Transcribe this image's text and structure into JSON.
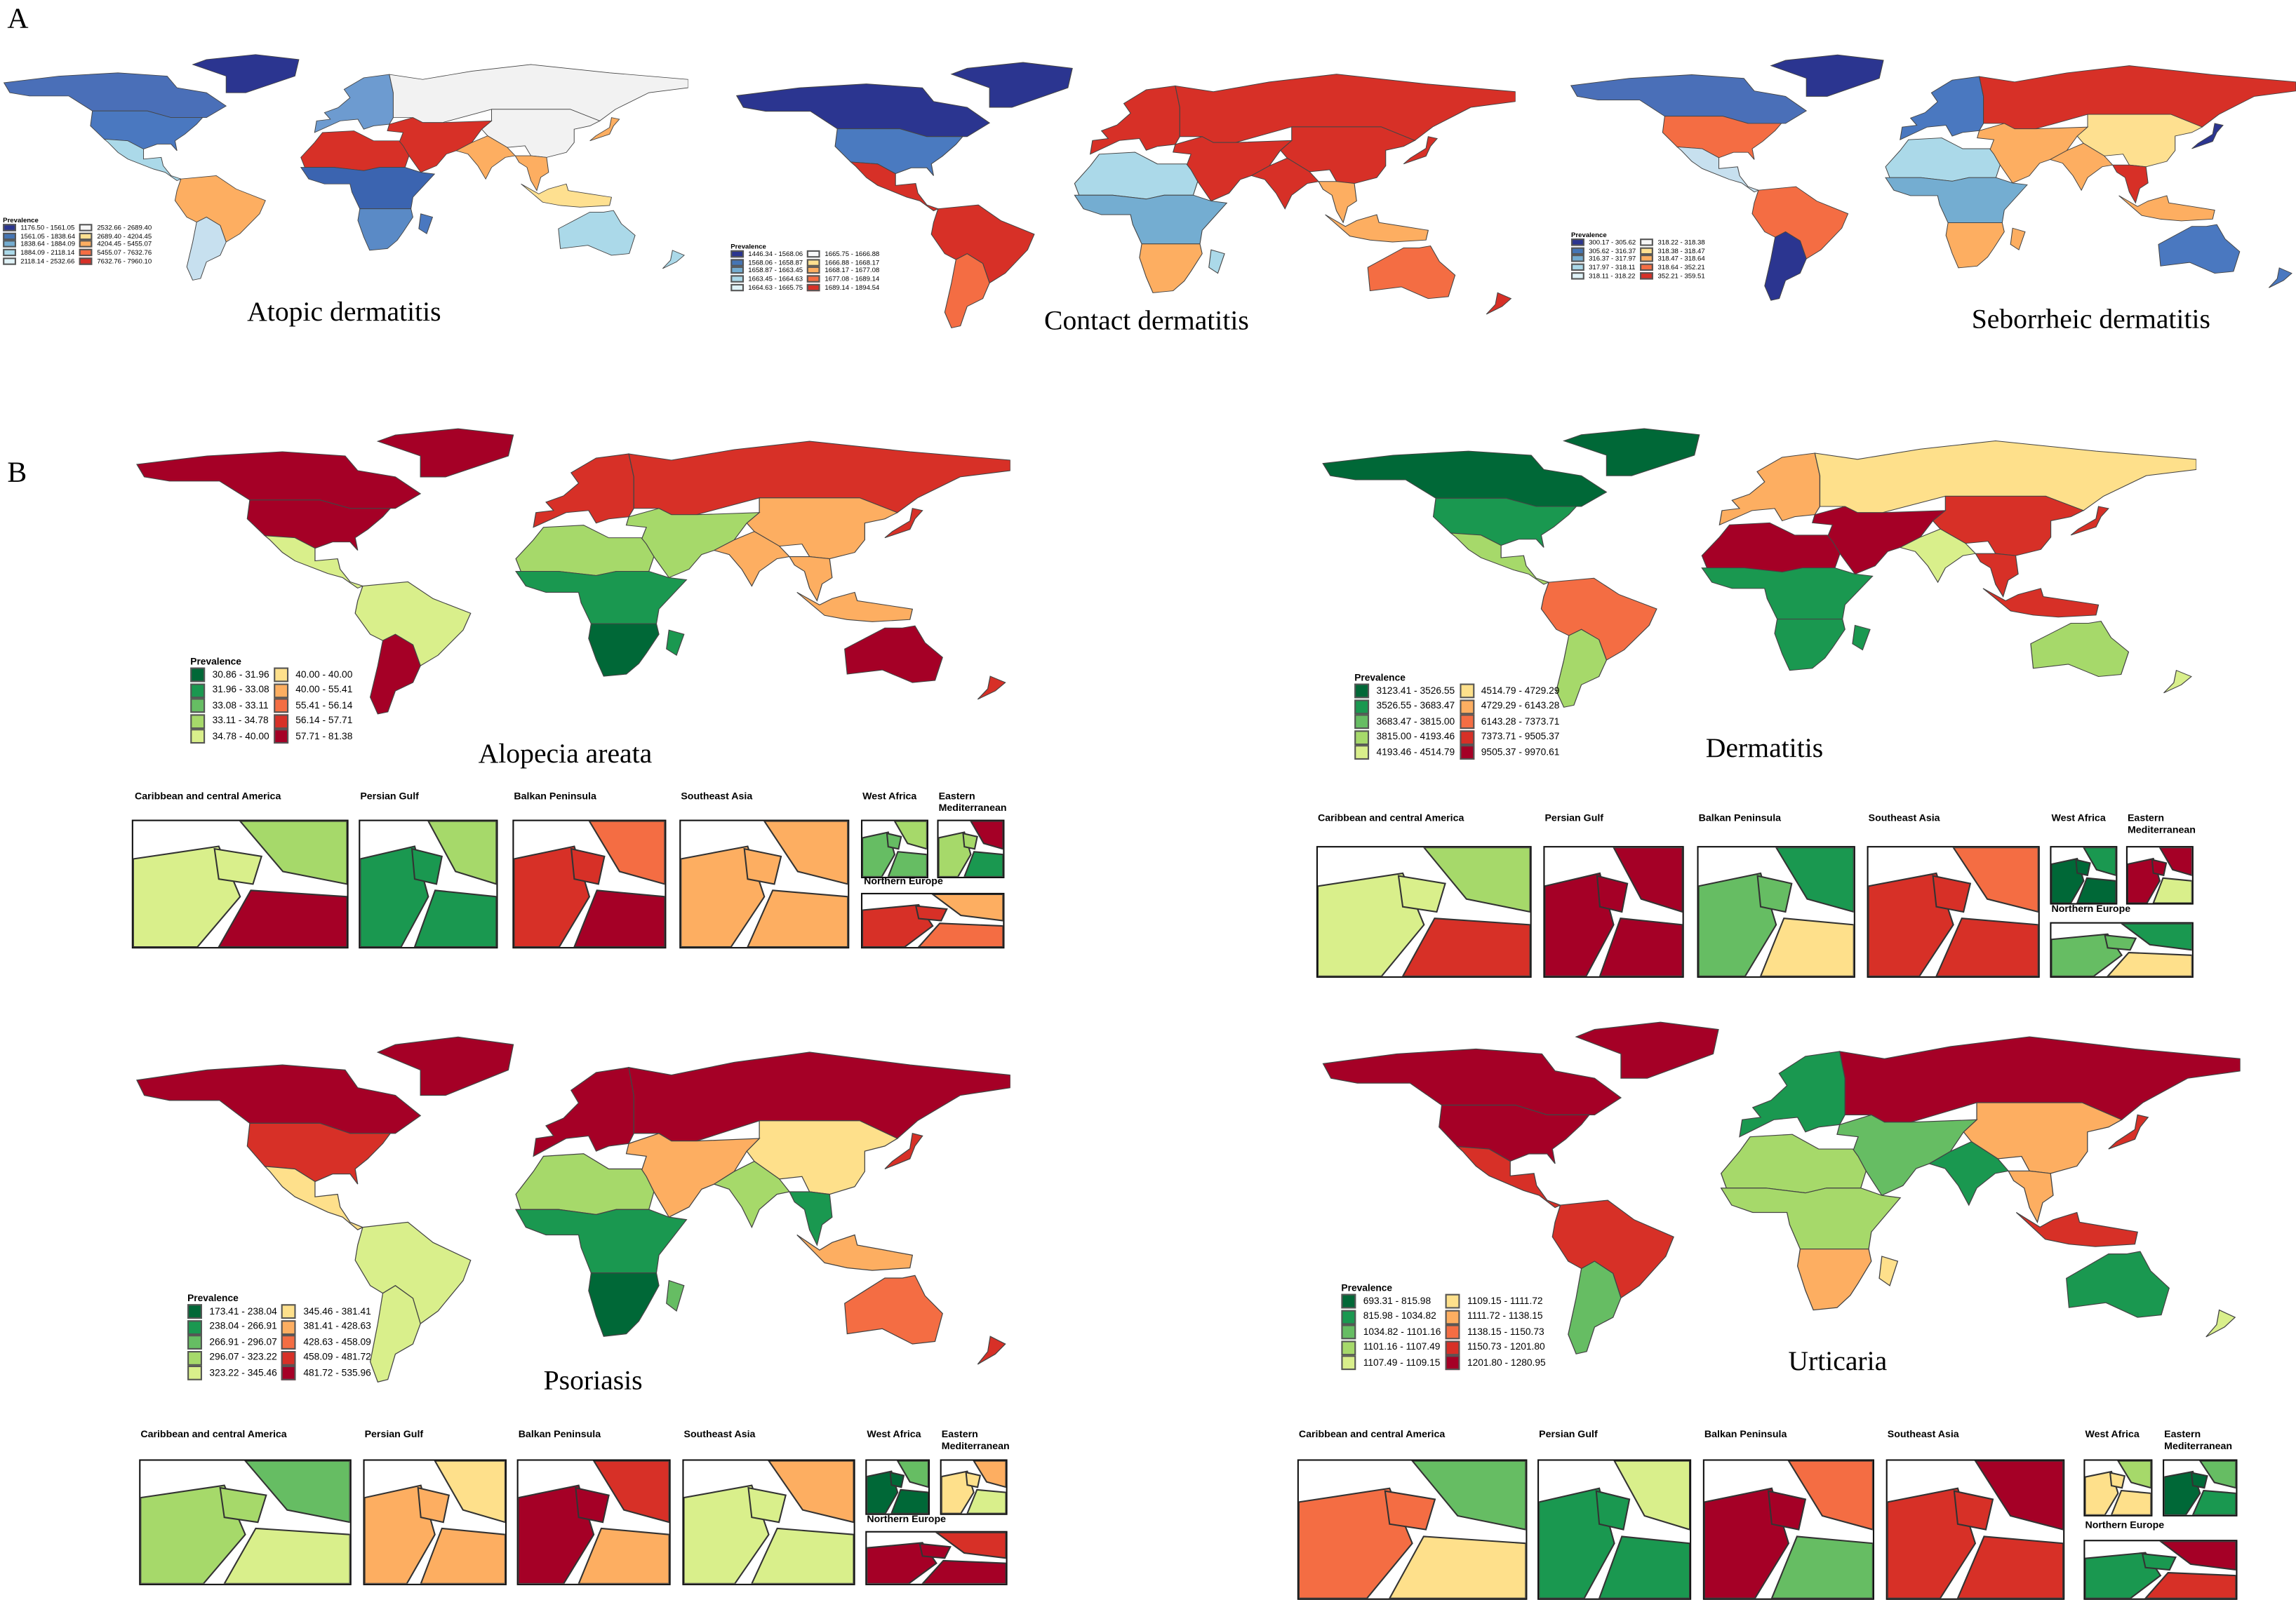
{
  "panel_labels": {
    "a": "A",
    "b": "B"
  },
  "legend_title": "Prevalence",
  "inset_labels": [
    "Caribbean and central America",
    "Persian Gulf",
    "Balkan Peninsula",
    "Southeast Asia",
    "West Africa",
    "Eastern Mediterranean",
    "Northern Europe"
  ],
  "maps": [
    {
      "id": "atopic",
      "title": "Atopic dermatitis",
      "legend": [
        {
          "range": "1176.50 - 1561.05",
          "color": "#2b3590"
        },
        {
          "range": "1561.05 - 1838.64",
          "color": "#4575b4"
        },
        {
          "range": "1838.64 - 1884.09",
          "color": "#74add1"
        },
        {
          "range": "1884.09 - 2118.14",
          "color": "#abd9e9"
        },
        {
          "range": "2118.14 - 2532.66",
          "color": "#e0f3f8"
        },
        {
          "range": "2532.66 - 2689.40",
          "color": "#f7f7f7"
        },
        {
          "range": "2689.40 - 4204.45",
          "color": "#fee090"
        },
        {
          "range": "4204.45 - 5455.07",
          "color": "#fdae61"
        },
        {
          "range": "5455.07 - 7632.76",
          "color": "#f46d43"
        },
        {
          "range": "7632.76 - 7960.10",
          "color": "#d73027"
        }
      ],
      "regions": {
        "greenland": "#2b3590",
        "canada": "#4a6fb8",
        "usa": "#4a78c0",
        "mexico": "#abd9e9",
        "sa_n": "#fdae61",
        "sa_s": "#c7e0ef",
        "europe": "#6d9bd0",
        "russia": "#f2f2f2",
        "china": "#f2f2f2",
        "middle_east": "#d73027",
        "india": "#fdae61",
        "se_asia": "#fdae61",
        "indonesia": "#fee090",
        "japan": "#fdae61",
        "n_africa": "#d73027",
        "c_africa": "#3b64b0",
        "s_africa": "#5a8ac6",
        "madagascar": "#4a78c0",
        "australia": "#abd9e9",
        "nz": "#abd9e9"
      }
    },
    {
      "id": "contact",
      "title": "Contact dermatitis",
      "legend": [
        {
          "range": "1446.34 - 1568.06",
          "color": "#2b3590"
        },
        {
          "range": "1568.06 - 1658.87",
          "color": "#4575b4"
        },
        {
          "range": "1658.87 - 1663.45",
          "color": "#74add1"
        },
        {
          "range": "1663.45 - 1664.63",
          "color": "#abd9e9"
        },
        {
          "range": "1664.63 - 1665.75",
          "color": "#e0f3f8"
        },
        {
          "range": "1665.75 - 1666.88",
          "color": "#f7f7f7"
        },
        {
          "range": "1666.88 - 1668.17",
          "color": "#fee090"
        },
        {
          "range": "1668.17 - 1677.08",
          "color": "#fdae61"
        },
        {
          "range": "1677.08 - 1689.14",
          "color": "#f46d43"
        },
        {
          "range": "1689.14 - 1894.54",
          "color": "#d73027"
        }
      ],
      "regions": {
        "greenland": "#2b3590",
        "canada": "#2b3590",
        "usa": "#4a7ac0",
        "mexico": "#d73027",
        "sa_n": "#d73027",
        "sa_s": "#f46d43",
        "europe": "#d73027",
        "russia": "#d73027",
        "china": "#d73027",
        "middle_east": "#d73027",
        "india": "#d73027",
        "se_asia": "#fdae61",
        "indonesia": "#fdae61",
        "japan": "#d73027",
        "n_africa": "#abd9e9",
        "c_africa": "#74add1",
        "s_africa": "#fdae61",
        "madagascar": "#abd9e9",
        "australia": "#f46d43",
        "nz": "#d73027"
      }
    },
    {
      "id": "seborrheic",
      "title": "Seborrheic dermatitis",
      "legend": [
        {
          "range": "300.17 - 305.62",
          "color": "#2b3590"
        },
        {
          "range": "305.62 - 316.37",
          "color": "#4575b4"
        },
        {
          "range": "316.37 - 317.97",
          "color": "#74add1"
        },
        {
          "range": "317.97 - 318.11",
          "color": "#abd9e9"
        },
        {
          "range": "318.11 - 318.22",
          "color": "#e0f3f8"
        },
        {
          "range": "318.22 - 318.38",
          "color": "#f7f7f7"
        },
        {
          "range": "318.38 - 318.47",
          "color": "#fee090"
        },
        {
          "range": "318.47 - 318.64",
          "color": "#fdae61"
        },
        {
          "range": "318.64 - 352.21",
          "color": "#f46d43"
        },
        {
          "range": "352.21 - 359.51",
          "color": "#d73027"
        }
      ],
      "regions": {
        "greenland": "#2b3590",
        "canada": "#4a6fb8",
        "usa": "#f46d43",
        "mexico": "#c7e0ef",
        "sa_n": "#f46d43",
        "sa_s": "#2b3590",
        "europe": "#4a78c0",
        "russia": "#d73027",
        "china": "#fee090",
        "middle_east": "#fdae61",
        "india": "#fdae61",
        "se_asia": "#d73027",
        "indonesia": "#fdae61",
        "japan": "#2b3590",
        "n_africa": "#abd9e9",
        "c_africa": "#74add1",
        "s_africa": "#fdae61",
        "madagascar": "#fdae61",
        "australia": "#4a78c0",
        "nz": "#4a78c0"
      }
    },
    {
      "id": "alopecia",
      "title": "Alopecia areata",
      "legend": [
        {
          "range": "30.86 - 31.96",
          "color": "#006837"
        },
        {
          "range": "31.96 - 33.08",
          "color": "#1a9850"
        },
        {
          "range": "33.08 - 33.11",
          "color": "#66bd63"
        },
        {
          "range": "33.11 - 34.78",
          "color": "#a6d96a"
        },
        {
          "range": "34.78 - 40.00",
          "color": "#d9ef8b"
        },
        {
          "range": "40.00 - 40.00",
          "color": "#fee08b"
        },
        {
          "range": "40.00 - 55.41",
          "color": "#fdae61"
        },
        {
          "range": "55.41 - 56.14",
          "color": "#f46d43"
        },
        {
          "range": "56.14 - 57.71",
          "color": "#d73027"
        },
        {
          "range": "57.71 - 81.38",
          "color": "#a50026"
        }
      ],
      "regions": {
        "greenland": "#a50026",
        "canada": "#a50026",
        "usa": "#a50026",
        "mexico": "#d9ef8b",
        "sa_n": "#d9ef8b",
        "sa_s": "#a50026",
        "europe": "#d73027",
        "russia": "#d73027",
        "china": "#fdae61",
        "middle_east": "#a6d96a",
        "india": "#fdae61",
        "se_asia": "#fdae61",
        "indonesia": "#fdae61",
        "japan": "#d73027",
        "n_africa": "#a6d96a",
        "c_africa": "#1a9850",
        "s_africa": "#006837",
        "madagascar": "#1a9850",
        "australia": "#a50026",
        "nz": "#d73027"
      },
      "insets": [
        [
          "#d9ef8b",
          "#a6d96a",
          "#a50026"
        ],
        [
          "#1a9850",
          "#a6d96a",
          "#1a9850"
        ],
        [
          "#d73027",
          "#f46d43",
          "#a50026"
        ],
        [
          "#fdae61",
          "#fdae61",
          "#fdae61"
        ],
        [
          "#66bd63",
          "#a6d96a",
          "#66bd63"
        ],
        [
          "#a6d96a",
          "#a50026",
          "#1a9850"
        ],
        [
          "#d73027",
          "#fdae61",
          "#f46d43"
        ]
      ]
    },
    {
      "id": "dermatitis",
      "title": "Dermatitis",
      "legend": [
        {
          "range": "3123.41 - 3526.55",
          "color": "#006837"
        },
        {
          "range": "3526.55 - 3683.47",
          "color": "#1a9850"
        },
        {
          "range": "3683.47 - 3815.00",
          "color": "#66bd63"
        },
        {
          "range": "3815.00 - 4193.46",
          "color": "#a6d96a"
        },
        {
          "range": "4193.46 - 4514.79",
          "color": "#d9ef8b"
        },
        {
          "range": "4514.79 - 4729.29",
          "color": "#fee08b"
        },
        {
          "range": "4729.29 - 6143.28",
          "color": "#fdae61"
        },
        {
          "range": "6143.28 - 7373.71",
          "color": "#f46d43"
        },
        {
          "range": "7373.71 - 9505.37",
          "color": "#d73027"
        },
        {
          "range": "9505.37 - 9970.61",
          "color": "#a50026"
        }
      ],
      "regions": {
        "greenland": "#006837",
        "canada": "#006837",
        "usa": "#1a9850",
        "mexico": "#a6d96a",
        "sa_n": "#f46d43",
        "sa_s": "#a6d96a",
        "europe": "#fdae61",
        "russia": "#fee08b",
        "china": "#d73027",
        "middle_east": "#a50026",
        "india": "#d9ef8b",
        "se_asia": "#d73027",
        "indonesia": "#d73027",
        "japan": "#d73027",
        "n_africa": "#a50026",
        "c_africa": "#1a9850",
        "s_africa": "#1a9850",
        "madagascar": "#1a9850",
        "australia": "#a6d96a",
        "nz": "#d9ef8b"
      },
      "insets": [
        [
          "#d9ef8b",
          "#a6d96a",
          "#d73027"
        ],
        [
          "#a50026",
          "#a50026",
          "#a50026"
        ],
        [
          "#66bd63",
          "#1a9850",
          "#fee08b"
        ],
        [
          "#d73027",
          "#f46d43",
          "#d73027"
        ],
        [
          "#006837",
          "#1a9850",
          "#006837"
        ],
        [
          "#a50026",
          "#a50026",
          "#d9ef8b"
        ],
        [
          "#66bd63",
          "#1a9850",
          "#fee08b"
        ]
      ]
    },
    {
      "id": "psoriasis",
      "title": "Psoriasis",
      "legend": [
        {
          "range": "173.41 - 238.04",
          "color": "#006837"
        },
        {
          "range": "238.04 - 266.91",
          "color": "#1a9850"
        },
        {
          "range": "266.91 - 296.07",
          "color": "#66bd63"
        },
        {
          "range": "296.07 - 323.22",
          "color": "#a6d96a"
        },
        {
          "range": "323.22 - 345.46",
          "color": "#d9ef8b"
        },
        {
          "range": "345.46 - 381.41",
          "color": "#fee08b"
        },
        {
          "range": "381.41 - 428.63",
          "color": "#fdae61"
        },
        {
          "range": "428.63 - 458.09",
          "color": "#f46d43"
        },
        {
          "range": "458.09 - 481.72",
          "color": "#d73027"
        },
        {
          "range": "481.72 - 535.96",
          "color": "#a50026"
        }
      ],
      "regions": {
        "greenland": "#a50026",
        "canada": "#a50026",
        "usa": "#d73027",
        "mexico": "#fee08b",
        "sa_n": "#d9ef8b",
        "sa_s": "#d9ef8b",
        "europe": "#a50026",
        "russia": "#a50026",
        "china": "#fee08b",
        "middle_east": "#fdae61",
        "india": "#a6d96a",
        "se_asia": "#1a9850",
        "indonesia": "#fdae61",
        "japan": "#d73027",
        "n_africa": "#a6d96a",
        "c_africa": "#1a9850",
        "s_africa": "#006837",
        "madagascar": "#66bd63",
        "australia": "#f46d43",
        "nz": "#d73027"
      },
      "insets": [
        [
          "#a6d96a",
          "#66bd63",
          "#d9ef8b"
        ],
        [
          "#fdae61",
          "#fee08b",
          "#fdae61"
        ],
        [
          "#a50026",
          "#d73027",
          "#fdae61"
        ],
        [
          "#d9ef8b",
          "#fdae61",
          "#d9ef8b"
        ],
        [
          "#006837",
          "#66bd63",
          "#006837"
        ],
        [
          "#fee08b",
          "#fdae61",
          "#d9ef8b"
        ],
        [
          "#a50026",
          "#d73027",
          "#a50026"
        ]
      ]
    },
    {
      "id": "urticaria",
      "title": "Urticaria",
      "legend": [
        {
          "range": "693.31 - 815.98",
          "color": "#006837"
        },
        {
          "range": "815.98 - 1034.82",
          "color": "#1a9850"
        },
        {
          "range": "1034.82 - 1101.16",
          "color": "#66bd63"
        },
        {
          "range": "1101.16 - 1107.49",
          "color": "#a6d96a"
        },
        {
          "range": "1107.49 - 1109.15",
          "color": "#d9ef8b"
        },
        {
          "range": "1109.15 - 1111.72",
          "color": "#fee08b"
        },
        {
          "range": "1111.72 - 1138.15",
          "color": "#fdae61"
        },
        {
          "range": "1138.15 - 1150.73",
          "color": "#f46d43"
        },
        {
          "range": "1150.73 - 1201.80",
          "color": "#d73027"
        },
        {
          "range": "1201.80 - 1280.95",
          "color": "#a50026"
        }
      ],
      "regions": {
        "greenland": "#a50026",
        "canada": "#a50026",
        "usa": "#a50026",
        "mexico": "#d73027",
        "sa_n": "#d73027",
        "sa_s": "#66bd63",
        "europe": "#1a9850",
        "russia": "#a50026",
        "china": "#fdae61",
        "middle_east": "#66bd63",
        "india": "#1a9850",
        "se_asia": "#fdae61",
        "indonesia": "#d73027",
        "japan": "#d73027",
        "n_africa": "#a6d96a",
        "c_africa": "#a6d96a",
        "s_africa": "#fdae61",
        "madagascar": "#fee08b",
        "australia": "#1a9850",
        "nz": "#d9ef8b"
      },
      "insets": [
        [
          "#f46d43",
          "#66bd63",
          "#fee08b"
        ],
        [
          "#1a9850",
          "#d9ef8b",
          "#1a9850"
        ],
        [
          "#a50026",
          "#f46d43",
          "#66bd63"
        ],
        [
          "#d73027",
          "#a50026",
          "#d73027"
        ],
        [
          "#fee08b",
          "#a6d96a",
          "#fee08b"
        ],
        [
          "#006837",
          "#66bd63",
          "#1a9850"
        ],
        [
          "#1a9850",
          "#a50026",
          "#d73027"
        ]
      ]
    }
  ]
}
